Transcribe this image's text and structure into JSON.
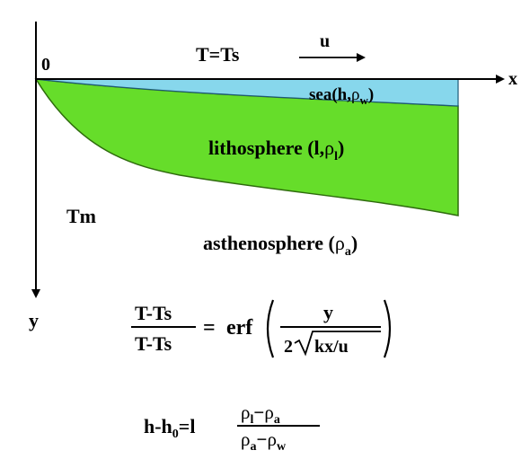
{
  "diagram": {
    "origin_label": "0",
    "x_axis_label": "x",
    "y_axis_label": "y",
    "surface_temp_label": "T=Ts",
    "velocity_label": "u",
    "mantle_temp_label": "Tm",
    "sea": {
      "name": "sea",
      "params": "h,",
      "rho": "ρ",
      "rho_sub": "w",
      "close": ")",
      "color": "#87d7ec"
    },
    "lithosphere": {
      "name": "lithosphere (",
      "params": "l,",
      "rho": "ρ",
      "rho_sub": "l",
      "close": ")",
      "color": "#66dd2a"
    },
    "asthenosphere": {
      "name": "asthenosphere (",
      "rho": "ρ",
      "rho_sub": "a",
      "close": ")"
    }
  },
  "equation1": {
    "numerator": "T-Ts",
    "denominator": "T-Ts",
    "equals": "=",
    "func": "erf",
    "frac_num": "y",
    "coef": "2",
    "radicand": "kx/u"
  },
  "equation2": {
    "lhs": "h-h",
    "lhs_sub": "0",
    "eq": "=l",
    "num_rho1": "ρ",
    "num_sub1": "l",
    "num_minus": "−",
    "num_rho2": "ρ",
    "num_sub2": "a",
    "den_rho1": "ρ",
    "den_sub1": "a",
    "den_minus": "−",
    "den_rho2": "ρ",
    "den_sub2": "w"
  }
}
